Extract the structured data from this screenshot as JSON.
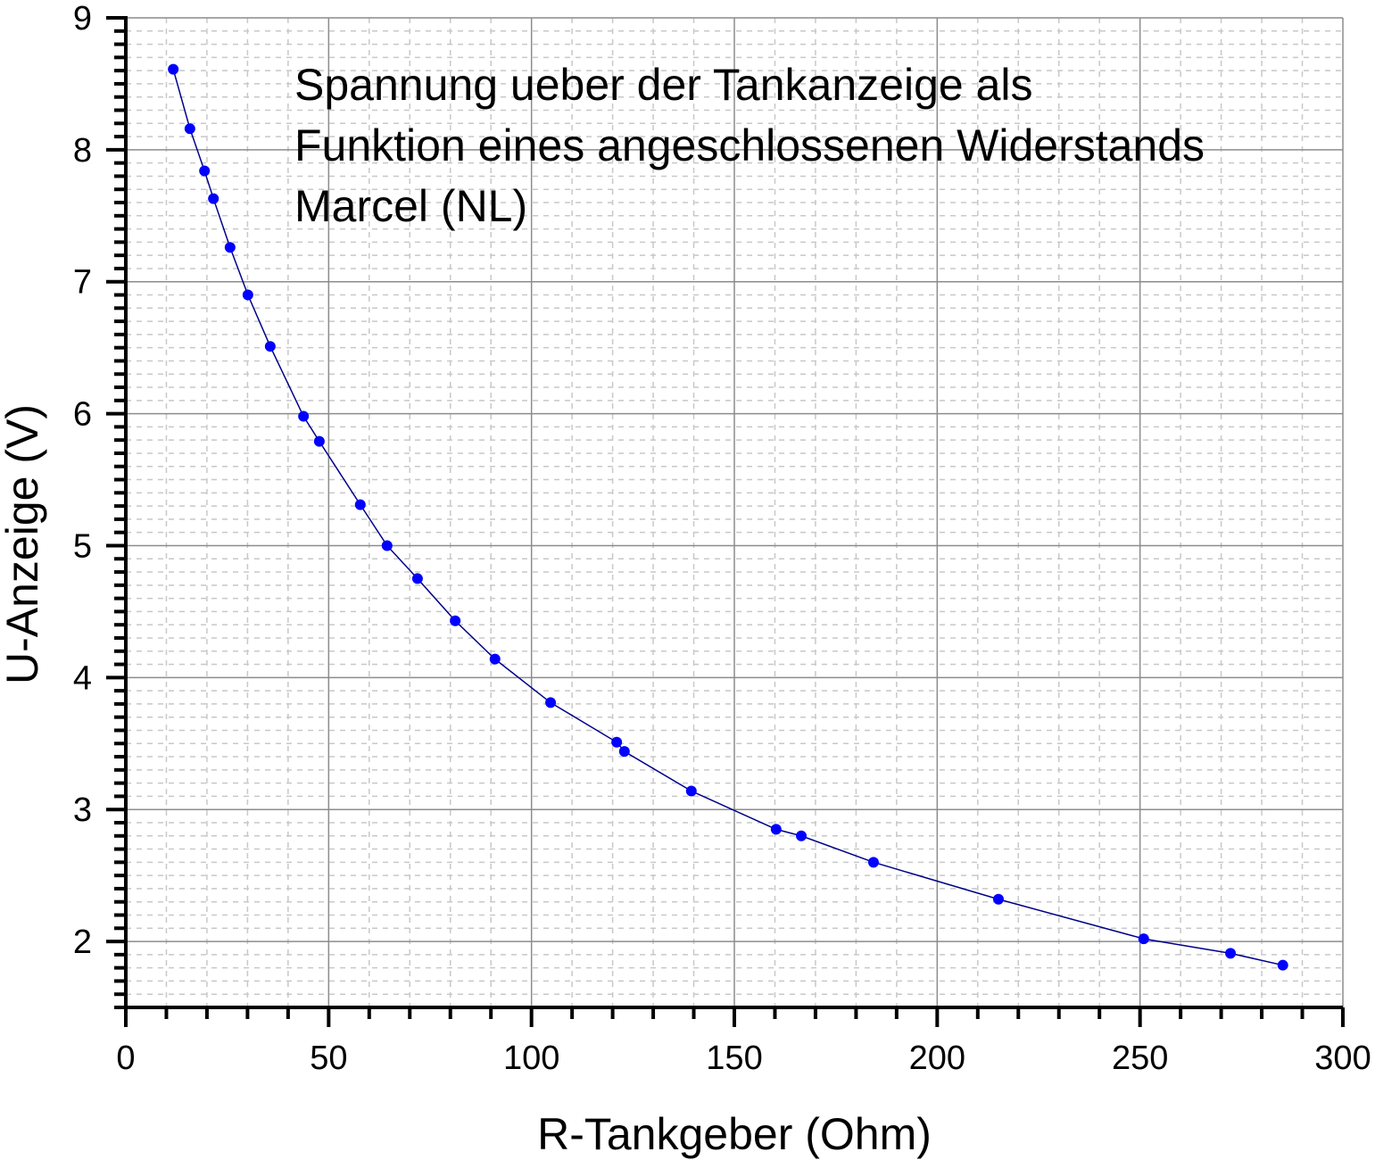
{
  "chart_data": {
    "type": "scatter",
    "title_lines": [
      "Spannung ueber der Tankanzeige als",
      "Funktion eines angeschlossenen Widerstands",
      "Marcel (NL)"
    ],
    "xlabel": "R-Tankgeber (Ohm)",
    "ylabel": "U-Anzeige (V)",
    "xlim": [
      0,
      300
    ],
    "ylim": [
      1.5,
      9
    ],
    "x_ticks": [
      0,
      50,
      100,
      150,
      200,
      250,
      300
    ],
    "y_ticks": [
      2,
      3,
      4,
      5,
      6,
      7,
      8,
      9
    ],
    "x_minor_step": 10,
    "y_minor_step": 0.1,
    "grid": true,
    "connected_line": true,
    "marker_color": "#0000ff",
    "line_color": "#00008b",
    "points": [
      [
        11.7,
        8.61
      ],
      [
        15.8,
        8.16
      ],
      [
        19.4,
        7.84
      ],
      [
        21.6,
        7.63
      ],
      [
        25.7,
        7.26
      ],
      [
        30.1,
        6.9
      ],
      [
        35.6,
        6.51
      ],
      [
        43.8,
        5.98
      ],
      [
        47.7,
        5.79
      ],
      [
        57.8,
        5.31
      ],
      [
        64.4,
        5.0
      ],
      [
        71.9,
        4.75
      ],
      [
        81.2,
        4.43
      ],
      [
        91.0,
        4.14
      ],
      [
        104.7,
        3.81
      ],
      [
        121.0,
        3.51
      ],
      [
        122.9,
        3.44
      ],
      [
        139.4,
        3.14
      ],
      [
        160.3,
        2.85
      ],
      [
        166.5,
        2.8
      ],
      [
        184.3,
        2.6
      ],
      [
        215.1,
        2.32
      ],
      [
        250.9,
        2.02
      ],
      [
        272.3,
        1.91
      ],
      [
        285.2,
        1.82
      ]
    ]
  }
}
